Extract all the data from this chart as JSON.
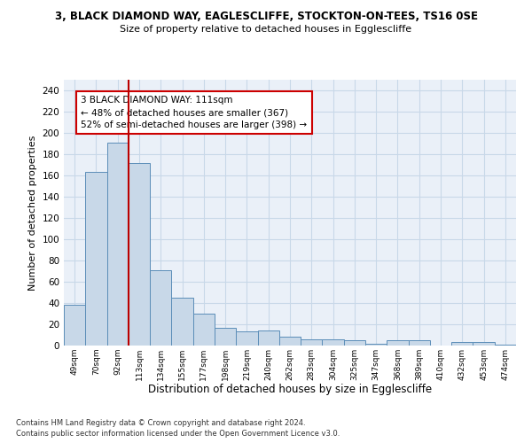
{
  "title_line1": "3, BLACK DIAMOND WAY, EAGLESCLIFFE, STOCKTON-ON-TEES, TS16 0SE",
  "title_line2": "Size of property relative to detached houses in Egglescliffe",
  "xlabel": "Distribution of detached houses by size in Egglescliffe",
  "ylabel": "Number of detached properties",
  "categories": [
    "49sqm",
    "70sqm",
    "92sqm",
    "113sqm",
    "134sqm",
    "155sqm",
    "177sqm",
    "198sqm",
    "219sqm",
    "240sqm",
    "262sqm",
    "283sqm",
    "304sqm",
    "325sqm",
    "347sqm",
    "368sqm",
    "389sqm",
    "410sqm",
    "432sqm",
    "453sqm",
    "474sqm"
  ],
  "values": [
    38,
    163,
    191,
    172,
    71,
    45,
    30,
    17,
    13,
    14,
    8,
    6,
    6,
    5,
    2,
    5,
    5,
    0,
    3,
    3,
    1
  ],
  "bar_color": "#c8d8e8",
  "bar_edge_color": "#5b8db8",
  "vline_color": "#bb0000",
  "annotation_text": "3 BLACK DIAMOND WAY: 111sqm\n← 48% of detached houses are smaller (367)\n52% of semi-detached houses are larger (398) →",
  "annotation_box_color": "#ffffff",
  "annotation_box_edge": "#cc0000",
  "ylim": [
    0,
    250
  ],
  "yticks": [
    0,
    20,
    40,
    60,
    80,
    100,
    120,
    140,
    160,
    180,
    200,
    220,
    240
  ],
  "footer_line1": "Contains HM Land Registry data © Crown copyright and database right 2024.",
  "footer_line2": "Contains public sector information licensed under the Open Government Licence v3.0.",
  "grid_color": "#c8d8e8",
  "bg_color": "#eaf0f8"
}
